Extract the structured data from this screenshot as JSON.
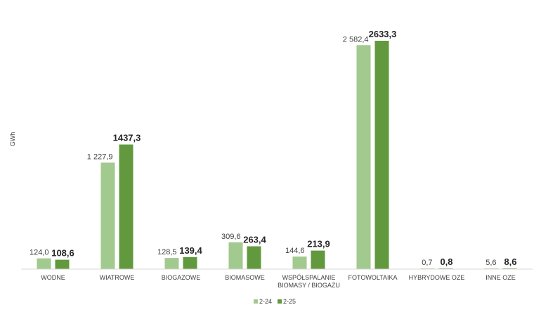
{
  "chart_data": {
    "type": "bar",
    "ylabel": "GWh",
    "categories": [
      [
        "WODNE"
      ],
      [
        "WIATROWE"
      ],
      [
        "BIOGAZOWE"
      ],
      [
        "BIOMASOWE"
      ],
      [
        "WSPÓŁSPALANIE",
        "BIOMASY / BIOGAZU"
      ],
      [
        "FOTOWOLTAIKA"
      ],
      [
        "HYBRYDOWE OZE"
      ],
      [
        "INNE OZE"
      ]
    ],
    "series": [
      {
        "name": "2-24",
        "color": "#a2c98e",
        "values": [
          124.0,
          1227.9,
          128.5,
          309.6,
          144.6,
          2582.4,
          0.7,
          5.6
        ],
        "labels": [
          "124,0",
          "1 227,9",
          "128,5",
          "309,6",
          "144,6",
          "2 582,4",
          "0,7",
          "5,6"
        ]
      },
      {
        "name": "2-25",
        "color": "#62993e",
        "values": [
          108.6,
          1437.3,
          139.4,
          263.4,
          213.9,
          2633.3,
          0.8,
          8.6
        ],
        "labels": [
          "108,6",
          "1437,3",
          "139,4",
          "263,4",
          "213,9",
          "2633,3",
          "0,8",
          "8,6"
        ]
      }
    ],
    "ylim": [
      0,
      2633.3
    ],
    "legend": "bottom-center",
    "grid": false
  }
}
